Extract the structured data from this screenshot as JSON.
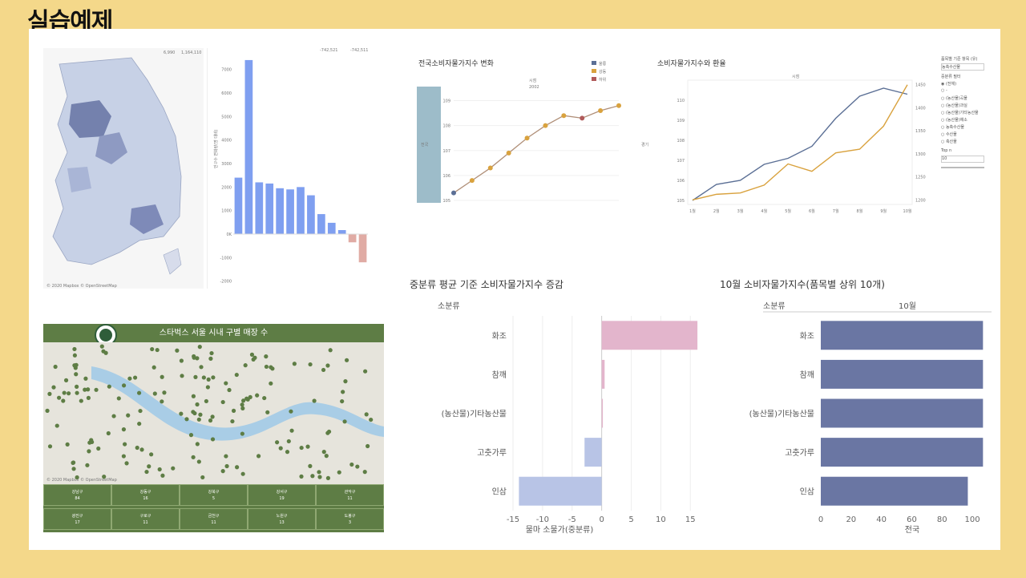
{
  "slide_title": "실습예제",
  "colors": {
    "background": "#f4d88a",
    "blue_bar": "#7f9ff0",
    "neg_bar": "#e0aba4",
    "navy_bar": "#6a76a3",
    "pink_bar": "#e3b5cc",
    "lavender_bar": "#b8c4e6",
    "line_brown": "#b08f78",
    "line_blue": "#5b6f95",
    "line_orange": "#d9a23e",
    "starbucks_green": "#5e7d45"
  },
  "map_panel": {
    "legend_min": "6,990",
    "legend_max": "1,164,110",
    "credit": "© 2020 Mapbox © OpenStreetMap"
  },
  "bar_panel": {
    "top_labels": [
      "-742,521",
      "-742,511"
    ],
    "ylabel": "인구수 변화량(명 대비)",
    "icon": "map-icon"
  },
  "line_panel": {
    "title": "전국소비자물가지수 변화",
    "header": "시점",
    "subheader": "2002",
    "ylabel": "전국",
    "y2label": "경기",
    "legend": [
      "울릉",
      "강동",
      "하위"
    ]
  },
  "dual_panel": {
    "title": "소비자물가지수와 환율",
    "header": "시점",
    "filter_title": "품목별 기준 항목 (유)",
    "filter_select": "농축수산물",
    "filter_group_title": "중분류 필터",
    "filter_options": [
      "(전체)",
      "-",
      "(농산물)곡물",
      "(농산물)과실",
      "(농산물)기타농산물",
      "(농산물)채소",
      "농축수산물",
      "수산물",
      "축산물"
    ],
    "topn_label": "Top n",
    "topn_value": "10"
  },
  "starbucks_panel": {
    "title": "스타벅스 서울 시내 구별 매장 수",
    "logo": "starbucks-logo-icon",
    "credit": "© 2020 Mapbox © OpenStreetMap",
    "districts": [
      {
        "name": "강남구",
        "count": "84"
      },
      {
        "name": "강동구",
        "count": "16"
      },
      {
        "name": "강북구",
        "count": "5"
      },
      {
        "name": "강서구",
        "count": "19"
      },
      {
        "name": "관악구",
        "count": "11"
      },
      {
        "name": "광진구",
        "count": "17"
      },
      {
        "name": "구로구",
        "count": "11"
      },
      {
        "name": "금천구",
        "count": "11"
      },
      {
        "name": "노원구",
        "count": "13"
      },
      {
        "name": "도봉구",
        "count": "3"
      }
    ]
  },
  "chart_data": [
    {
      "type": "bar",
      "title": "중분류 평균 기준 소비자물가지수 증감",
      "orientation": "horizontal",
      "row_header": "소분류",
      "categories": [
        "화조",
        "참깨",
        "(농산물)기타농산물",
        "고춧가루",
        "인삼"
      ],
      "values": [
        16.2,
        0.5,
        0.2,
        -2.9,
        -14.0
      ],
      "xlabel": "물마 소물가(중분류)",
      "xlim": [
        -15,
        17
      ],
      "xticks": [
        -15,
        -10,
        -5,
        0,
        5,
        10,
        15
      ]
    },
    {
      "type": "bar",
      "title": "10월 소비자물가지수(품목별 상위 10개)",
      "orientation": "horizontal",
      "row_header": "소분류",
      "column_header": "10월",
      "categories": [
        "화조",
        "참깨",
        "(농산물)기타농산물",
        "고춧가루",
        "인삼"
      ],
      "values": [
        107,
        107,
        107,
        107,
        97
      ],
      "xlabel": "전국",
      "xlim": [
        0,
        110
      ],
      "xticks": [
        0,
        20,
        40,
        60,
        80,
        100
      ]
    },
    {
      "type": "bar",
      "title": "",
      "values": [
        2400,
        7400,
        2200,
        2150,
        1950,
        1900,
        2000,
        1650,
        850,
        480,
        170,
        -350,
        -1200
      ],
      "ylim": [
        -1500,
        7500
      ],
      "yticks": [
        "7000",
        "6000",
        "5000",
        "4000",
        "3000",
        "2000",
        "1000",
        "0K",
        "-1000",
        "-2000"
      ]
    },
    {
      "type": "line",
      "title": "전국소비자물가지수 변화",
      "values": [
        105.3,
        105.8,
        106.3,
        106.9,
        107.5,
        108.0,
        108.4,
        108.3,
        108.6,
        108.8
      ],
      "ylim": [
        105,
        109.5
      ],
      "yticks": [
        105,
        106,
        107,
        108,
        109
      ]
    },
    {
      "type": "line",
      "title": "소비자물가지수와 환율",
      "x": [
        "1월",
        "2월",
        "3월",
        "4월",
        "5월",
        "6월",
        "7월",
        "8월",
        "9월",
        "10월"
      ],
      "series": [
        {
          "values": [
            105.0,
            105.8,
            106.0,
            106.8,
            107.1,
            107.7,
            109.1,
            110.2,
            110.6,
            110.3
          ]
        },
        {
          "values": [
            1200,
            1212,
            1215,
            1232,
            1278,
            1262,
            1302,
            1310,
            1360,
            1450
          ]
        }
      ],
      "ylim": [
        104.8,
        111.0
      ],
      "y2lim": [
        1190,
        1460
      ],
      "yticks": [
        105,
        106,
        107,
        108,
        109,
        110
      ],
      "y2ticks": [
        1200,
        1250,
        1300,
        1350,
        1400,
        1450
      ]
    }
  ]
}
